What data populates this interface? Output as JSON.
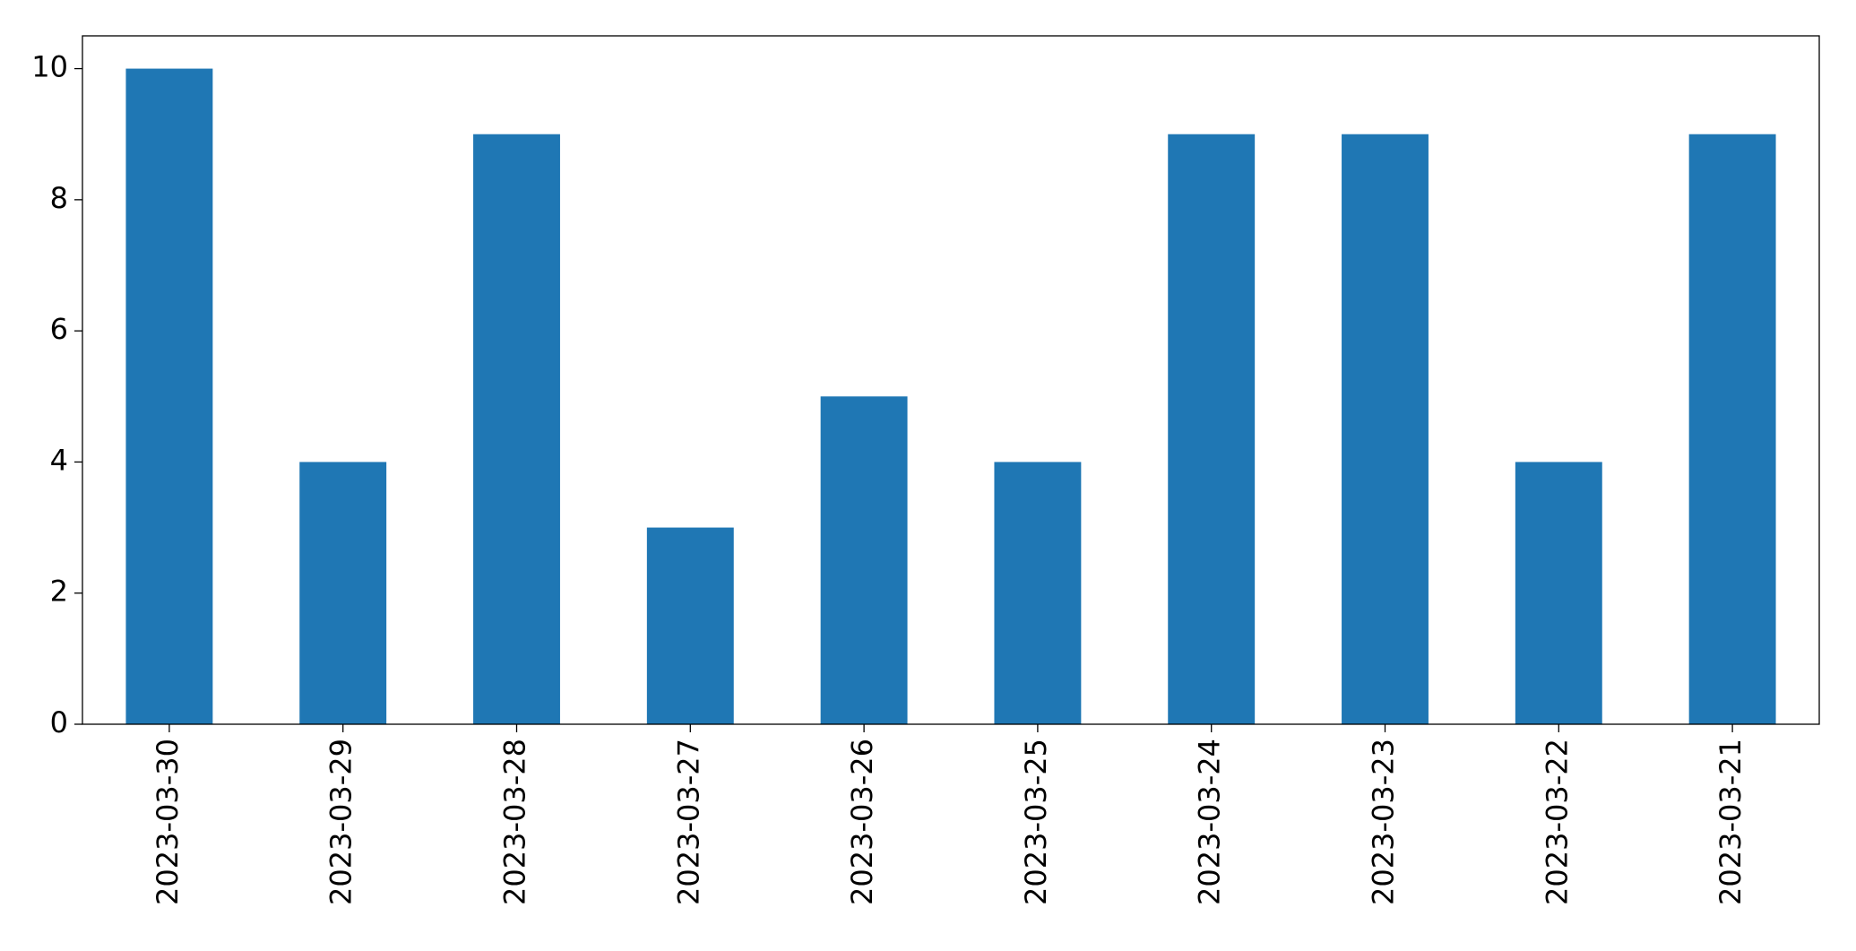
{
  "chart_data": {
    "type": "bar",
    "categories": [
      "2023-03-30",
      "2023-03-29",
      "2023-03-28",
      "2023-03-27",
      "2023-03-26",
      "2023-03-25",
      "2023-03-24",
      "2023-03-23",
      "2023-03-22",
      "2023-03-21"
    ],
    "values": [
      10,
      4,
      9,
      3,
      5,
      4,
      9,
      9,
      4,
      9
    ],
    "color": "#1f77b4",
    "ylim": [
      0,
      10.5
    ],
    "yticks": [
      0,
      2,
      4,
      6,
      8,
      10
    ],
    "grid": false
  }
}
